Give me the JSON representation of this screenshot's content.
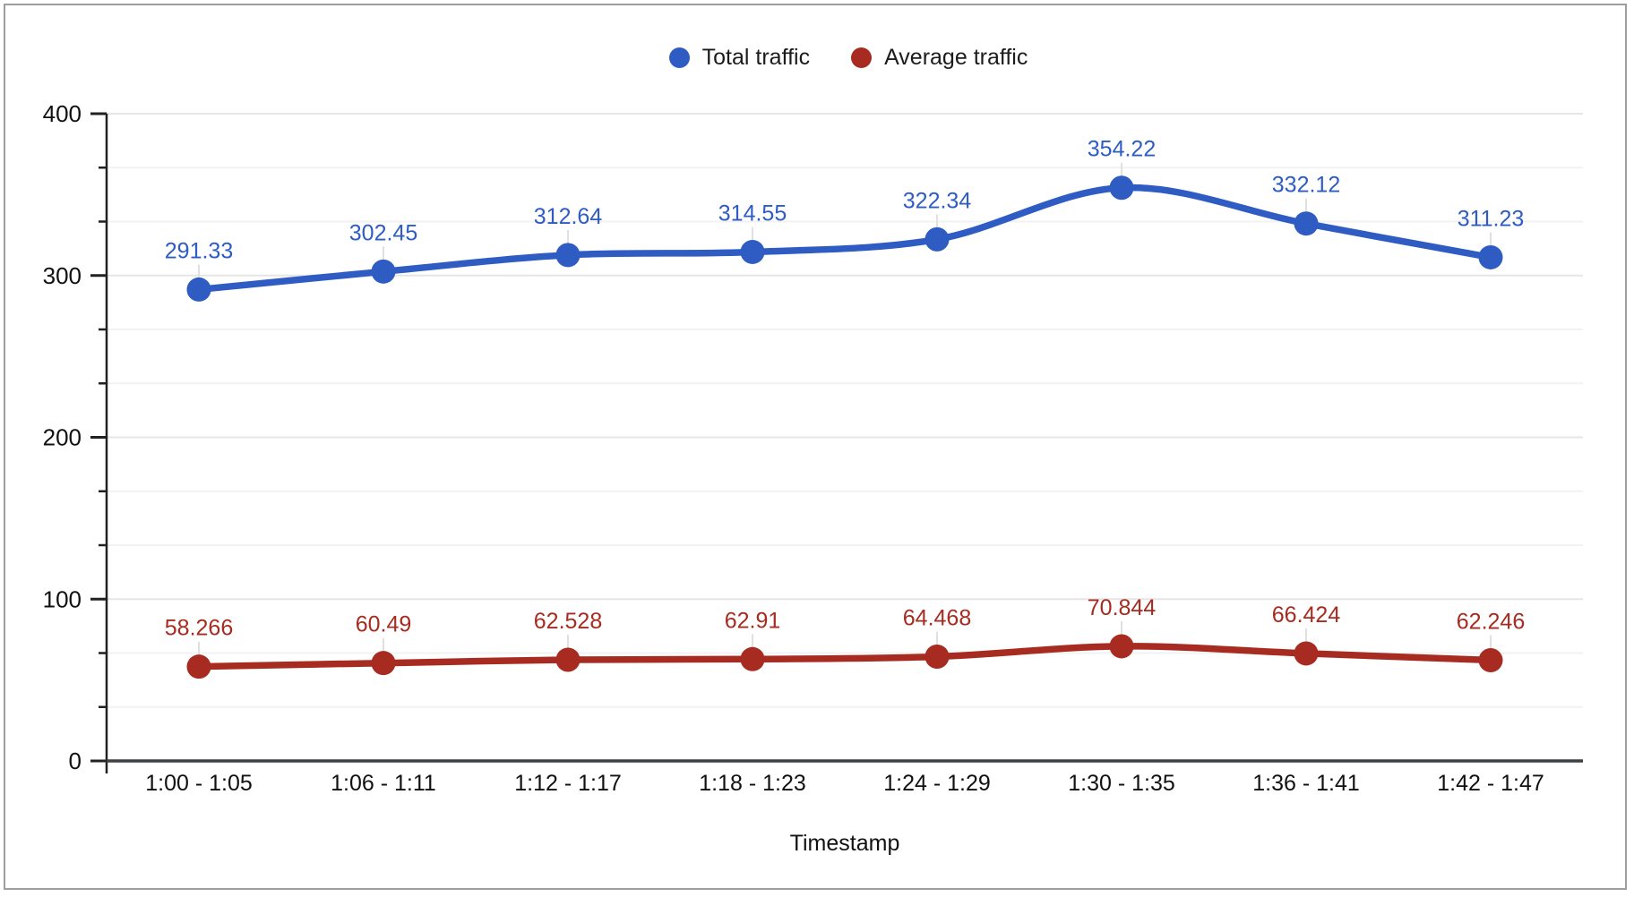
{
  "chart_data": {
    "type": "line",
    "curve": "smooth",
    "title": "",
    "xlabel": "Timestamp",
    "ylabel": "",
    "categories": [
      "1:00 - 1:05",
      "1:06 - 1:11",
      "1:12 - 1:17",
      "1:18 - 1:23",
      "1:24 - 1:29",
      "1:30 - 1:35",
      "1:36 - 1:41",
      "1:42 - 1:47"
    ],
    "series": [
      {
        "name": "Total traffic",
        "color": "#2e5cc3",
        "values": [
          291.33,
          302.45,
          312.64,
          314.55,
          322.34,
          354.22,
          332.12,
          311.23
        ],
        "labels": [
          "291.33",
          "302.45",
          "312.64",
          "314.55",
          "322.34",
          "354.22",
          "332.12",
          "311.23"
        ]
      },
      {
        "name": "Average traffic",
        "color": "#a72b20",
        "values": [
          58.266,
          60.49,
          62.528,
          62.91,
          64.468,
          70.844,
          66.424,
          62.246
        ],
        "labels": [
          "58.266",
          "60.49",
          "62.528",
          "62.91",
          "64.468",
          "70.844",
          "66.424",
          "62.246"
        ]
      }
    ],
    "ylim": [
      0,
      400
    ],
    "yticks": [
      0,
      100,
      200,
      300,
      400
    ],
    "ytick_labels": [
      "0",
      "100",
      "200",
      "300",
      "400"
    ],
    "minor_gridline_divisions": 3,
    "grid": true,
    "legend_position": "top",
    "colors": {
      "axis_line": "#212121",
      "baseline": "#3c4043",
      "major_grid": "#e6e6e6",
      "minor_grid": "#f2f2f2",
      "leader_line": "#e0e0e0",
      "tick_text": "#111111",
      "axis_title_text": "#111111",
      "legend_text": "#1c1c1c",
      "frame_border": "#9e9e9e"
    }
  }
}
